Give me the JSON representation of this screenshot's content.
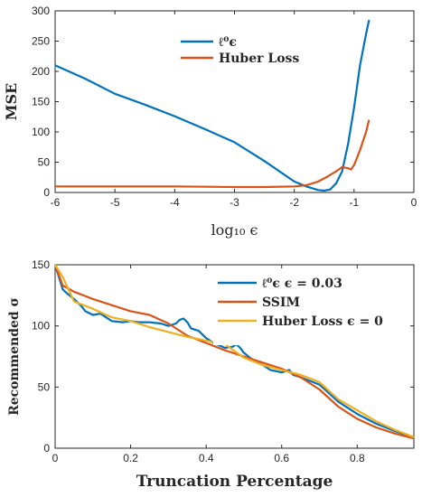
{
  "chart_data": [
    {
      "type": "line",
      "title": "",
      "xlabel": "log₁₀ ϵ",
      "ylabel": "MSE",
      "xlim": [
        -6,
        0
      ],
      "ylim": [
        0,
        300
      ],
      "xticks": [
        "-6",
        "-5",
        "-4",
        "-3",
        "-2",
        "-1",
        "0"
      ],
      "yticks": [
        "0",
        "50",
        "100",
        "150",
        "200",
        "250",
        "300"
      ],
      "grid": false,
      "legend": "top-center",
      "series": [
        {
          "name": "ℓ⁰ϵ",
          "color": "#0072BD",
          "x": [
            -6,
            -5.5,
            -5,
            -4.5,
            -4,
            -3.5,
            -3,
            -2.5,
            -2,
            -1.8,
            -1.6,
            -1.5,
            -1.4,
            -1.3,
            -1.2,
            -1.1,
            -1.0,
            -0.9,
            -0.8,
            -0.75
          ],
          "y": [
            210,
            188,
            163,
            145,
            126,
            105,
            83,
            52,
            18,
            10,
            4,
            3,
            5,
            15,
            35,
            80,
            140,
            210,
            262,
            285
          ]
        },
        {
          "name": "Huber Loss",
          "color": "#D95319",
          "x": [
            -6,
            -5,
            -4,
            -3,
            -2.5,
            -2,
            -1.8,
            -1.6,
            -1.45,
            -1.3,
            -1.2,
            -1.1,
            -1.05,
            -1.0,
            -0.9,
            -0.8,
            -0.75
          ],
          "y": [
            10,
            10,
            10,
            9,
            9,
            10,
            12,
            18,
            26,
            35,
            42,
            40,
            38,
            45,
            70,
            100,
            120
          ]
        }
      ]
    },
    {
      "type": "line",
      "title": "",
      "xlabel": "Truncation Percentage",
      "ylabel": "Recommended σ",
      "xlim": [
        0,
        0.95
      ],
      "ylim": [
        0,
        150
      ],
      "xticks": [
        "0",
        "0.2",
        "0.4",
        "0.6",
        "0.8"
      ],
      "yticks": [
        "0",
        "50",
        "100",
        "150"
      ],
      "grid": false,
      "legend": "top-right",
      "series": [
        {
          "name": "ℓ⁰ϵ ϵ = 0.03",
          "color": "#0072BD",
          "x": [
            0.0,
            0.01,
            0.02,
            0.03,
            0.05,
            0.07,
            0.08,
            0.1,
            0.12,
            0.15,
            0.18,
            0.2,
            0.22,
            0.25,
            0.28,
            0.3,
            0.32,
            0.33,
            0.34,
            0.35,
            0.36,
            0.38,
            0.4,
            0.42,
            0.45,
            0.47,
            0.48,
            0.49,
            0.5,
            0.52,
            0.55,
            0.57,
            0.6,
            0.62,
            0.63,
            0.65,
            0.7,
            0.75,
            0.8,
            0.85,
            0.9,
            0.95
          ],
          "y": [
            150,
            140,
            130,
            127,
            122,
            116,
            112,
            109,
            110,
            104,
            103,
            104,
            103,
            103,
            102,
            100,
            102,
            105,
            106,
            103,
            98,
            96,
            90,
            86,
            82,
            83,
            85,
            82,
            78,
            73,
            68,
            64,
            62,
            64,
            60,
            58,
            52,
            38,
            28,
            20,
            14,
            9
          ]
        },
        {
          "name": "SSIM",
          "color": "#D95319",
          "x": [
            0.0,
            0.02,
            0.05,
            0.1,
            0.15,
            0.2,
            0.25,
            0.3,
            0.35,
            0.4,
            0.45,
            0.5,
            0.55,
            0.6,
            0.65,
            0.7,
            0.75,
            0.8,
            0.85,
            0.9,
            0.95
          ],
          "y": [
            150,
            133,
            128,
            122,
            117,
            112,
            109,
            102,
            92,
            86,
            80,
            75,
            70,
            65,
            58,
            48,
            34,
            24,
            17,
            12,
            8
          ]
        },
        {
          "name": "Huber Loss ϵ = 0",
          "color": "#EDB120",
          "x": [
            0.0,
            0.02,
            0.05,
            0.1,
            0.15,
            0.2,
            0.25,
            0.3,
            0.35,
            0.4,
            0.45,
            0.5,
            0.55,
            0.6,
            0.65,
            0.7,
            0.75,
            0.8,
            0.85,
            0.9,
            0.95
          ],
          "y": [
            150,
            140,
            120,
            114,
            107,
            104,
            99,
            95,
            91,
            88,
            85,
            74,
            68,
            64,
            60,
            54,
            40,
            31,
            22,
            15,
            9
          ]
        }
      ]
    }
  ]
}
